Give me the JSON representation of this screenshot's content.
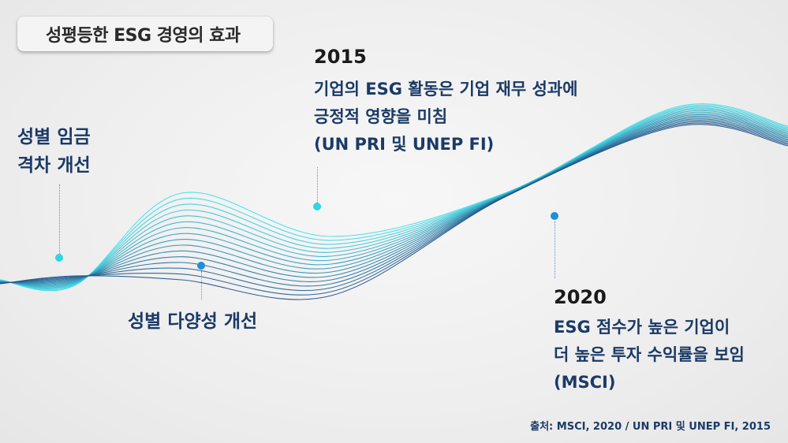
{
  "title": "성평등한 ESG 경영의 효과",
  "items": {
    "pay_gap": {
      "label_line1": "성별 임금",
      "label_line2": "격차 개선"
    },
    "diversity": {
      "label": "성별 다양성 개선"
    },
    "y2015": {
      "year": "2015",
      "line1": "기업의 ESG 활동은 기업 재무 성과에",
      "line2": "긍정적 영향을 미침",
      "line3": "(UN PRI 및 UNEP FI)"
    },
    "y2020": {
      "year": "2020",
      "line1": "ESG 점수가 높은 기업이",
      "line2": "더 높은 투자 수익률을 보임",
      "line3": "(MSCI)"
    }
  },
  "source": "출처: MSCI, 2020 / UN PRI 및 UNEP FI, 2015",
  "colors": {
    "wave_light": "#3fe0ea",
    "wave_dark": "#1e4f86",
    "text_navy": "#1b3a66",
    "dot_cyan": "#2fd6e4",
    "dot_blue": "#1f8fd8"
  }
}
